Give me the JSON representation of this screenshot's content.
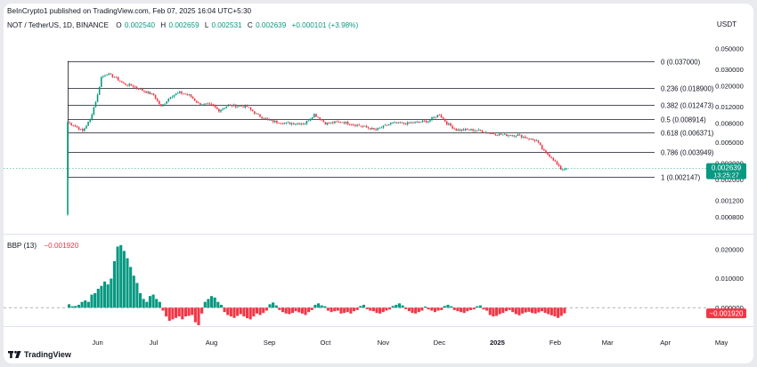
{
  "header": {
    "publisher": "BeInCrypto1 published on TradingView.com, Feb 07, 2025 16:04 UTC+5:30",
    "symbol": "NOT / TetherUS, 1D, BINANCE",
    "ohlc": [
      {
        "label": "O",
        "value": "0.002540"
      },
      {
        "label": "H",
        "value": "0.002659"
      },
      {
        "label": "L",
        "value": "0.002531"
      },
      {
        "label": "C",
        "value": "0.002639"
      }
    ],
    "change": "+0.000101 (+3.98%)",
    "currency": "USDT"
  },
  "brand": "TradingView",
  "colors": {
    "up": "#089981",
    "down": "#f23645",
    "fib_line": "#131722",
    "hist_up": "#089981",
    "hist_down": "#f23645"
  },
  "chart_data": [
    {
      "type": "candlestick",
      "scale": "log",
      "ylim": [
        0.00062,
        0.058
      ],
      "y_ticks": [
        "0.050000",
        "0.030000",
        "0.020000",
        "0.012000",
        "0.008000",
        "0.005000",
        "0.003000",
        "0.002000",
        "0.001200",
        "0.000800"
      ],
      "x_ticks": [
        "Jun",
        "Jul",
        "Aug",
        "Sep",
        "Oct",
        "Nov",
        "Dec",
        "2025",
        "Feb",
        "Mar",
        "Apr",
        "May"
      ],
      "fib_levels": [
        {
          "label": "0 (0.037000)",
          "value": 0.037
        },
        {
          "label": "0.236 (0.018900)",
          "value": 0.0189
        },
        {
          "label": "0.382 (0.012473)",
          "value": 0.012473
        },
        {
          "label": "0.5 (0.008914)",
          "value": 0.008914
        },
        {
          "label": "0.618 (0.006371)",
          "value": 0.006371
        },
        {
          "label": "0.786 (0.003949)",
          "value": 0.003949
        },
        {
          "label": "1 (0.002147)",
          "value": 0.002147
        }
      ],
      "last_price": {
        "value": 0.002639,
        "label": "0.002639",
        "countdown": "13:25:27"
      },
      "series": [
        {
          "date": "2024-05-16",
          "close": 0.0082
        },
        {
          "date": "2024-05-20",
          "close": 0.0075
        },
        {
          "date": "2024-05-24",
          "close": 0.0066
        },
        {
          "date": "2024-05-28",
          "close": 0.0088
        },
        {
          "date": "2024-06-01",
          "close": 0.016
        },
        {
          "date": "2024-06-03",
          "close": 0.025
        },
        {
          "date": "2024-06-06",
          "close": 0.027
        },
        {
          "date": "2024-06-10",
          "close": 0.025
        },
        {
          "date": "2024-06-15",
          "close": 0.021
        },
        {
          "date": "2024-06-20",
          "close": 0.02
        },
        {
          "date": "2024-06-25",
          "close": 0.018
        },
        {
          "date": "2024-07-01",
          "close": 0.016
        },
        {
          "date": "2024-07-05",
          "close": 0.012
        },
        {
          "date": "2024-07-10",
          "close": 0.0155
        },
        {
          "date": "2024-07-15",
          "close": 0.017
        },
        {
          "date": "2024-07-20",
          "close": 0.016
        },
        {
          "date": "2024-07-25",
          "close": 0.013
        },
        {
          "date": "2024-08-01",
          "close": 0.0125
        },
        {
          "date": "2024-08-05",
          "close": 0.011
        },
        {
          "date": "2024-08-10",
          "close": 0.0125
        },
        {
          "date": "2024-08-20",
          "close": 0.012
        },
        {
          "date": "2024-08-25",
          "close": 0.01
        },
        {
          "date": "2024-09-01",
          "close": 0.0085
        },
        {
          "date": "2024-09-10",
          "close": 0.008
        },
        {
          "date": "2024-09-20",
          "close": 0.008
        },
        {
          "date": "2024-09-25",
          "close": 0.01
        },
        {
          "date": "2024-10-01",
          "close": 0.008
        },
        {
          "date": "2024-10-10",
          "close": 0.0083
        },
        {
          "date": "2024-10-20",
          "close": 0.0075
        },
        {
          "date": "2024-10-28",
          "close": 0.0068
        },
        {
          "date": "2024-11-05",
          "close": 0.008
        },
        {
          "date": "2024-11-15",
          "close": 0.008
        },
        {
          "date": "2024-11-25",
          "close": 0.0085
        },
        {
          "date": "2024-12-01",
          "close": 0.01
        },
        {
          "date": "2024-12-05",
          "close": 0.008
        },
        {
          "date": "2024-12-10",
          "close": 0.0068
        },
        {
          "date": "2024-12-20",
          "close": 0.0068
        },
        {
          "date": "2024-12-30",
          "close": 0.0062
        },
        {
          "date": "2025-01-05",
          "close": 0.006
        },
        {
          "date": "2025-01-12",
          "close": 0.006
        },
        {
          "date": "2025-01-18",
          "close": 0.0055
        },
        {
          "date": "2025-01-22",
          "close": 0.0052
        },
        {
          "date": "2025-01-26",
          "close": 0.004
        },
        {
          "date": "2025-01-30",
          "close": 0.0035
        },
        {
          "date": "2025-02-02",
          "close": 0.0029
        },
        {
          "date": "2025-02-04",
          "close": 0.0026
        },
        {
          "date": "2025-02-07",
          "close": 0.002639
        }
      ]
    },
    {
      "type": "histogram",
      "title": "BBP (13)",
      "current": "−0.001920",
      "current_value": -0.00192,
      "ylim": [
        -0.0048,
        0.0245
      ],
      "y_ticks": [
        "0.020000",
        "0.010000",
        "0.000000"
      ],
      "values": [
        0.0012,
        0.0005,
        0.0006,
        0.001,
        0.002,
        0.0025,
        0.002,
        0.0045,
        0.005,
        0.0065,
        0.0075,
        0.009,
        0.008,
        0.01,
        0.016,
        0.021,
        0.0215,
        0.0195,
        0.017,
        0.014,
        0.011,
        0.0085,
        0.005,
        0.003,
        0.002,
        0.004,
        0.0045,
        0.003,
        0.002,
        -0.001,
        -0.003,
        -0.0045,
        -0.004,
        -0.0035,
        -0.003,
        -0.004,
        -0.003,
        -0.0028,
        -0.0025,
        -0.005,
        -0.006,
        -0.002,
        0.002,
        0.003,
        0.004,
        0.0035,
        0.002,
        0.001,
        -0.0015,
        -0.0025,
        -0.003,
        -0.0035,
        -0.0028,
        -0.0022,
        -0.003,
        -0.0036,
        -0.004,
        -0.003,
        -0.002,
        -0.0025,
        -0.0018,
        -0.001,
        0.0012,
        0.0018,
        0.0008,
        -0.0008,
        -0.0015,
        -0.002,
        -0.0022,
        -0.0018,
        -0.0012,
        -0.0016,
        -0.002,
        -0.0025,
        -0.0015,
        -0.0008,
        0.001,
        0.0015,
        0.0008,
        0.0005,
        -0.001,
        -0.0015,
        -0.0012,
        -0.001,
        -0.002,
        -0.0018,
        -0.0015,
        -0.002,
        -0.0012,
        -0.0008,
        0.0006,
        0.001,
        -0.0005,
        -0.001,
        -0.0012,
        -0.0018,
        -0.002,
        -0.0015,
        -0.001,
        -0.0006,
        0.0006,
        0.001,
        0.0015,
        0.0008,
        -0.0005,
        -0.0012,
        -0.0018,
        -0.002,
        -0.0015,
        -0.001,
        0.0004,
        -0.0006,
        -0.001,
        -0.0015,
        -0.001,
        -0.0008,
        0.0006,
        0.001,
        0.0005,
        -0.0008,
        -0.0012,
        -0.0015,
        -0.0018,
        -0.0012,
        -0.0008,
        -0.0006,
        0.0005,
        0.0008,
        -0.0006,
        -0.001,
        -0.0025,
        -0.003,
        -0.0028,
        -0.0022,
        -0.0018,
        -0.0012,
        -0.0008,
        -0.0015,
        -0.0022,
        -0.0026,
        -0.002,
        -0.0016,
        -0.0014,
        -0.0018,
        -0.002,
        -0.0016,
        -0.0012,
        -0.0018,
        -0.0022,
        -0.0026,
        -0.003,
        -0.0035,
        -0.0028,
        -0.00192
      ]
    }
  ]
}
